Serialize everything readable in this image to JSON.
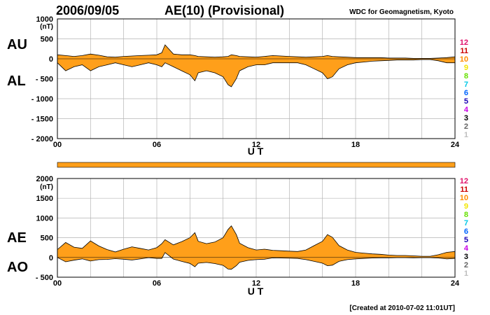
{
  "header": {
    "date": "2006/09/05",
    "title": "AE(10) (Provisional)",
    "source": "WDC for Geomagnetism, Kyoto"
  },
  "footer": {
    "created": "[Created at 2010-07-02 11:01UT]"
  },
  "colors": {
    "fill": "#ff9f1a",
    "line": "#000000",
    "grid": "#b4b4b4",
    "bar": "#ff9f1a"
  },
  "station_legend": [
    {
      "label": "12",
      "color": "#e0106a"
    },
    {
      "label": "11",
      "color": "#cc0000"
    },
    {
      "label": "10",
      "color": "#ff8c00"
    },
    {
      "label": "9",
      "color": "#f2e600"
    },
    {
      "label": "8",
      "color": "#66e000"
    },
    {
      "label": "7",
      "color": "#00c8e6"
    },
    {
      "label": "6",
      "color": "#0064ff"
    },
    {
      "label": "5",
      "color": "#1a00b4"
    },
    {
      "label": "4",
      "color": "#c800e6"
    },
    {
      "label": "3",
      "color": "#000000"
    },
    {
      "label": "2",
      "color": "#646464"
    },
    {
      "label": "1",
      "color": "#bebebe"
    }
  ],
  "chart_data": [
    {
      "type": "area",
      "panel": "AU / AL",
      "upper_label": "AU",
      "lower_label": "AL",
      "unit_label": "(nT)",
      "xlabel": "U T",
      "x_ticks": [
        "00",
        "06",
        "12",
        "18",
        "24"
      ],
      "xlim": [
        0,
        24
      ],
      "ylim": [
        -2000,
        1000
      ],
      "y_ticks": [
        1000,
        500,
        0,
        -500,
        -1000,
        -1500,
        -2000
      ],
      "y_tick_labels": [
        "1000",
        "500",
        "0",
        "- 500",
        "- 1000",
        "- 1500",
        "- 2000"
      ],
      "grid": true,
      "x": [
        0,
        0.5,
        1,
        1.5,
        2,
        2.5,
        3,
        3.5,
        4,
        4.5,
        5,
        5.5,
        6,
        6.3,
        6.5,
        7,
        7.5,
        8,
        8.3,
        8.5,
        9,
        9.5,
        10,
        10.3,
        10.5,
        10.8,
        11,
        11.5,
        12,
        12.5,
        13,
        13.5,
        14,
        14.5,
        15,
        15.5,
        16,
        16.3,
        16.6,
        17,
        17.5,
        18,
        18.5,
        19,
        19.5,
        20,
        20.5,
        21,
        21.5,
        22,
        22.5,
        23,
        23.5,
        24
      ],
      "series": [
        {
          "name": "AU",
          "values": [
            100,
            80,
            60,
            80,
            120,
            90,
            50,
            40,
            60,
            70,
            80,
            90,
            100,
            150,
            350,
            120,
            100,
            100,
            80,
            60,
            50,
            40,
            50,
            60,
            100,
            80,
            60,
            50,
            40,
            60,
            80,
            70,
            60,
            50,
            40,
            50,
            60,
            80,
            60,
            50,
            40,
            30,
            30,
            30,
            30,
            20,
            20,
            20,
            10,
            10,
            10,
            20,
            30,
            50
          ]
        },
        {
          "name": "AL",
          "values": [
            -100,
            -300,
            -200,
            -150,
            -300,
            -200,
            -150,
            -100,
            -150,
            -200,
            -150,
            -100,
            -150,
            -200,
            -100,
            -200,
            -300,
            -400,
            -550,
            -350,
            -300,
            -350,
            -450,
            -650,
            -700,
            -500,
            -300,
            -200,
            -150,
            -150,
            -100,
            -100,
            -100,
            -100,
            -150,
            -250,
            -350,
            -500,
            -450,
            -250,
            -150,
            -100,
            -80,
            -60,
            -50,
            -40,
            -30,
            -30,
            -30,
            -20,
            -20,
            -50,
            -100,
            -100
          ]
        }
      ]
    },
    {
      "type": "area",
      "panel": "AE / AO",
      "upper_label": "AE",
      "lower_label": "AO",
      "unit_label": "(nT)",
      "xlabel": "U T",
      "x_ticks": [
        "00",
        "06",
        "12",
        "18",
        "24"
      ],
      "xlim": [
        0,
        24
      ],
      "ylim": [
        -500,
        2000
      ],
      "y_ticks": [
        2000,
        1500,
        1000,
        500,
        0,
        -500
      ],
      "y_tick_labels": [
        "2000",
        "1500",
        "1000",
        "500",
        "0",
        "- 500"
      ],
      "grid": true,
      "x": [
        0,
        0.5,
        1,
        1.5,
        2,
        2.5,
        3,
        3.5,
        4,
        4.5,
        5,
        5.5,
        6,
        6.3,
        6.5,
        7,
        7.5,
        8,
        8.3,
        8.5,
        9,
        9.5,
        10,
        10.3,
        10.5,
        10.8,
        11,
        11.5,
        12,
        12.5,
        13,
        13.5,
        14,
        14.5,
        15,
        15.5,
        16,
        16.3,
        16.6,
        17,
        17.5,
        18,
        18.5,
        19,
        19.5,
        20,
        20.5,
        21,
        21.5,
        22,
        22.5,
        23,
        23.5,
        24
      ],
      "series": [
        {
          "name": "AE",
          "values": [
            200,
            380,
            260,
            230,
            420,
            290,
            200,
            140,
            210,
            270,
            230,
            190,
            250,
            350,
            450,
            320,
            400,
            500,
            630,
            410,
            350,
            390,
            500,
            710,
            800,
            580,
            360,
            250,
            190,
            210,
            180,
            170,
            160,
            150,
            190,
            300,
            410,
            580,
            510,
            300,
            190,
            130,
            110,
            90,
            80,
            60,
            50,
            50,
            40,
            30,
            30,
            70,
            130,
            150
          ]
        },
        {
          "name": "AO",
          "values": [
            0,
            -110,
            -70,
            -35,
            -90,
            -55,
            -50,
            -30,
            -45,
            -65,
            -35,
            -5,
            -25,
            -25,
            125,
            -40,
            -100,
            -150,
            -235,
            -145,
            -125,
            -155,
            -200,
            -295,
            -300,
            -210,
            -120,
            -75,
            -55,
            -45,
            -10,
            -15,
            -20,
            -25,
            -55,
            -100,
            -145,
            -210,
            -195,
            -100,
            -55,
            -35,
            -25,
            -15,
            -10,
            -10,
            -5,
            -5,
            -10,
            -5,
            -5,
            -15,
            -35,
            -25
          ]
        }
      ]
    }
  ]
}
